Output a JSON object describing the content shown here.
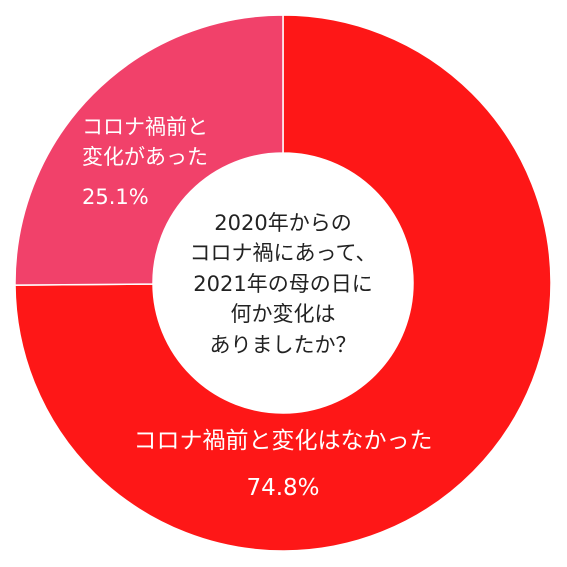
{
  "chart_data": {
    "type": "donut",
    "title": "2020年からの\nコロナ禍にあって、\n2021年の母の日に\n何か変化は\nありましたか？",
    "categories": [
      "コロナ禍前と変化はなかった",
      "コロナ禍前と\n変化があった"
    ],
    "values": [
      74.8,
      25.1
    ],
    "value_labels": [
      "74.8%",
      "25.1%"
    ],
    "colors": [
      "#fe1717",
      "#f1416a"
    ]
  }
}
